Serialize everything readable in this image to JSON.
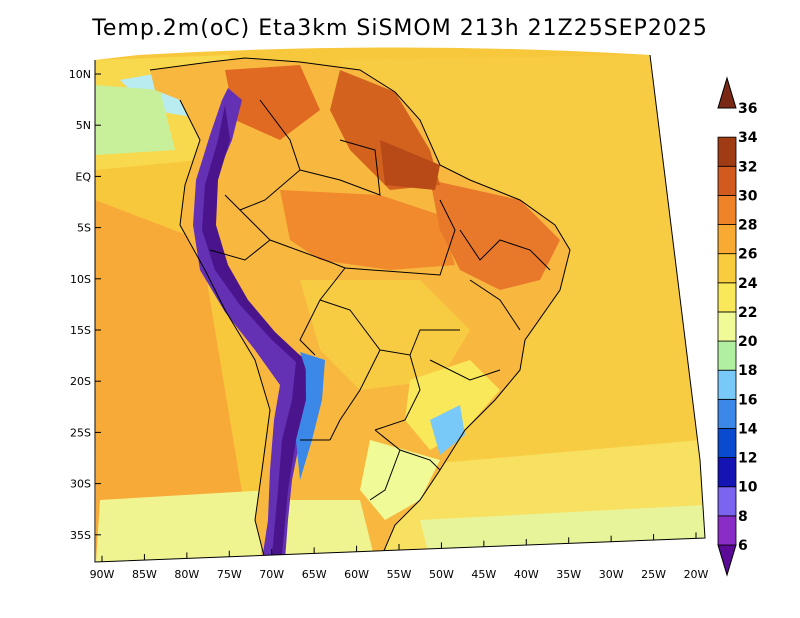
{
  "title": "Temp.2m(oC) Eta3km SiSMOM 213h 21Z25SEP2025",
  "lat_labels": [
    "10N",
    "5N",
    "EQ",
    "5S",
    "10S",
    "15S",
    "20S",
    "25S",
    "30S",
    "35S"
  ],
  "lon_labels": [
    "90W",
    "85W",
    "80W",
    "75W",
    "70W",
    "65W",
    "60W",
    "55W",
    "50W",
    "45W",
    "40W",
    "35W",
    "30W",
    "25W",
    "20W"
  ],
  "colorbar": {
    "labels": [
      "6",
      "8",
      "10",
      "12",
      "14",
      "16",
      "18",
      "20",
      "22",
      "24",
      "26",
      "28",
      "30",
      "32",
      "34",
      "36"
    ],
    "colors": [
      "#5a0a96",
      "#8a2cc8",
      "#7a64f0",
      "#1414b4",
      "#0a4ad0",
      "#3c88e8",
      "#78c8f8",
      "#b0f0a0",
      "#f0fa96",
      "#f8e85a",
      "#f8cc3c",
      "#f8aa32",
      "#f08228",
      "#d25a1e",
      "#a03c14",
      "#782814"
    ]
  },
  "colors": {
    "ocean_warm": "#f8c83c",
    "ocean_mid": "#f8a838",
    "ocean_cool": "#f8e060",
    "land_hot": "#f08a2c",
    "land_very_hot": "#d2621e",
    "andes": "#6430b4",
    "andes_core": "#4a148c",
    "cool_coast": "#c8f09a",
    "border": "#000000"
  }
}
